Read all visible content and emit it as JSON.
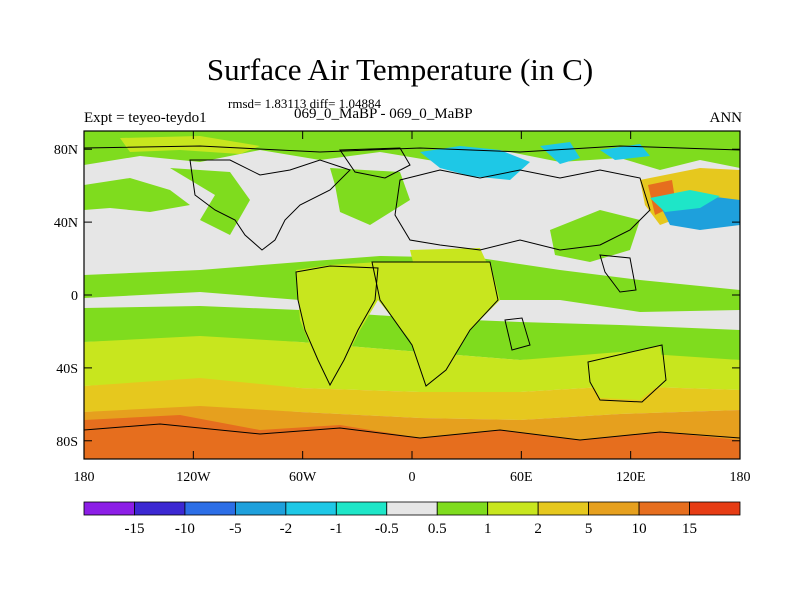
{
  "figure": {
    "title": "Surface Air Temperature (in C)",
    "stats": "rmsd= 1.83113 diff= 1.04884",
    "experiment": "Expt = teyeo-teydo1",
    "case": "069_0_MaBP - 069_0_MaBP",
    "season": "ANN"
  },
  "axes": {
    "lat_ticks": [
      "80N",
      "40N",
      "0",
      "40S",
      "80S"
    ],
    "lon_ticks": [
      "180",
      "120W",
      "60W",
      "0",
      "60E",
      "120E",
      "180"
    ],
    "lon_range": [
      -180,
      180
    ],
    "lat_range": [
      -90,
      90
    ]
  },
  "colorbar": {
    "labels": [
      "-15",
      "-10",
      "-5",
      "-2",
      "-1",
      "-0.5",
      "0.5",
      "1",
      "2",
      "5",
      "10",
      "15"
    ],
    "colors": [
      "#8c1ee6",
      "#3c28d2",
      "#2c6ee6",
      "#1ea0dc",
      "#1ec8e6",
      "#1ee6c8",
      "#e6e6e6",
      "#7fdc1e",
      "#c8e61e",
      "#e6c81e",
      "#e6a01e",
      "#e66e1e",
      "#e63c14"
    ]
  },
  "map_colors": {
    "neutral": "#e6e6e6",
    "light_green": "#7fdc1e",
    "yellow_green": "#c8e61e",
    "gold": "#e6c81e",
    "orange": "#e6a01e",
    "dark_orange": "#e66e1e",
    "cyan": "#1ec8e6",
    "blue": "#1ea0dc",
    "teal": "#1ee6c8"
  }
}
